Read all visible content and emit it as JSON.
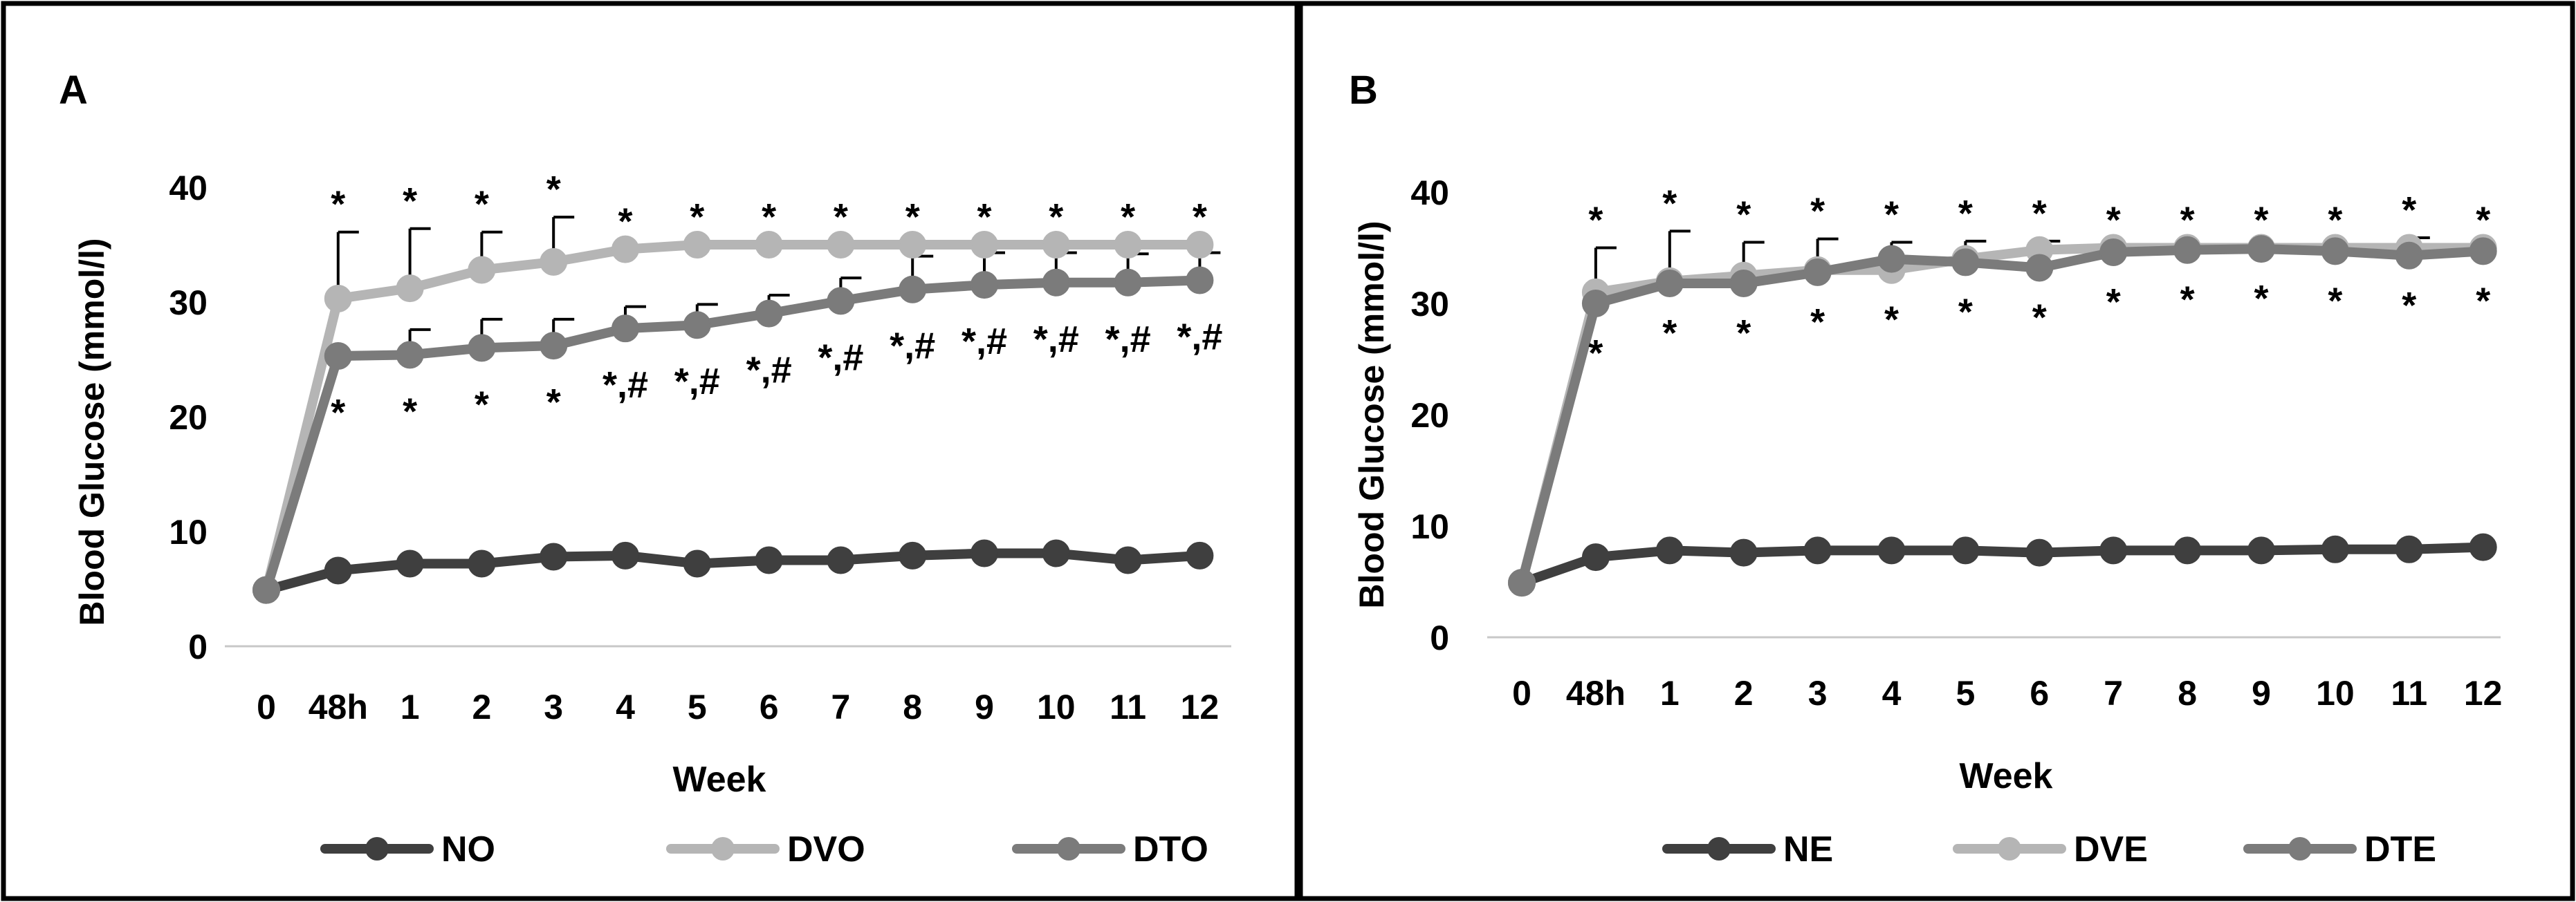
{
  "chart_data": [
    {
      "panel": "A",
      "type": "line",
      "title": "",
      "xlabel": "Week",
      "ylabel": "Blood Glucose (mmol/l)",
      "ylim": [
        0,
        40
      ],
      "yticks": [
        0,
        10,
        20,
        30,
        40
      ],
      "categories": [
        "0",
        "48h",
        "1",
        "2",
        "3",
        "4",
        "5",
        "6",
        "7",
        "8",
        "9",
        "10",
        "11",
        "12"
      ],
      "legend_position": "bottom",
      "grid": false,
      "series": [
        {
          "name": "NO",
          "color": "#3f3f3f",
          "values": [
            4.9,
            6.6,
            7.2,
            7.2,
            7.8,
            7.9,
            7.2,
            7.5,
            7.5,
            7.9,
            8.1,
            8.1,
            7.5,
            7.9
          ],
          "error": [
            0,
            0,
            0,
            0,
            0,
            0,
            0,
            0,
            0,
            0,
            0,
            0,
            0,
            0
          ]
        },
        {
          "name": "DVO",
          "color": "#b5b5b5",
          "values": [
            4.9,
            30.3,
            31.2,
            32.8,
            33.5,
            34.6,
            35.0,
            35.0,
            35.0,
            35.0,
            35.0,
            35.0,
            35.0,
            35.0
          ],
          "error": [
            0,
            5.8,
            5.2,
            3.3,
            3.9,
            0,
            0,
            0,
            0,
            0,
            0,
            0,
            0,
            0
          ]
        },
        {
          "name": "DTO",
          "color": "#7b7b7b",
          "values": [
            4.9,
            25.3,
            25.4,
            26.0,
            26.2,
            27.7,
            28.0,
            29.0,
            30.1,
            31.1,
            31.5,
            31.7,
            31.7,
            31.9
          ],
          "error": [
            0,
            0,
            2.2,
            2.5,
            2.3,
            1.9,
            1.8,
            1.6,
            2.0,
            2.9,
            2.8,
            2.6,
            2.5,
            2.4
          ]
        }
      ],
      "annotations": {
        "above": [
          "",
          "*",
          "*",
          "*",
          "*",
          "*",
          "*",
          "*",
          "*",
          "*",
          "*",
          "*",
          "*",
          "*"
        ],
        "below": [
          "",
          "*",
          "*",
          "*",
          "*",
          "*,#",
          "*,#",
          "*,#",
          "*,#",
          "*,#",
          "*,#",
          "*,#",
          "*,#",
          "*,#"
        ]
      }
    },
    {
      "panel": "B",
      "type": "line",
      "title": "",
      "xlabel": "Week",
      "ylabel": "Blood Glucose (mmol/l)",
      "ylim": [
        0,
        40
      ],
      "yticks": [
        0,
        10,
        20,
        30,
        40
      ],
      "categories": [
        "0",
        "48h",
        "1",
        "2",
        "3",
        "4",
        "5",
        "6",
        "7",
        "8",
        "9",
        "10",
        "11",
        "12"
      ],
      "legend_position": "bottom",
      "grid": false,
      "series": [
        {
          "name": "NE",
          "color": "#3f3f3f",
          "values": [
            4.9,
            7.2,
            7.8,
            7.6,
            7.8,
            7.8,
            7.8,
            7.6,
            7.8,
            7.8,
            7.8,
            7.9,
            7.9,
            8.1
          ],
          "error": [
            0,
            0,
            0,
            0,
            0,
            0,
            0,
            0,
            0,
            0,
            0,
            0,
            0,
            0
          ]
        },
        {
          "name": "DVE",
          "color": "#b5b5b5",
          "values": [
            4.9,
            31.0,
            32.0,
            32.5,
            33.0,
            33.0,
            34.0,
            34.8,
            35.0,
            35.0,
            35.0,
            35.0,
            35.0,
            35.0
          ],
          "error": [
            0,
            4.0,
            4.5,
            3.0,
            2.8,
            2.5,
            1.6,
            0.8,
            0,
            0,
            0,
            0,
            0.9,
            0
          ]
        },
        {
          "name": "DTE",
          "color": "#7b7b7b",
          "values": [
            4.9,
            30.0,
            31.8,
            31.8,
            32.8,
            34.0,
            33.7,
            33.2,
            34.6,
            34.8,
            34.9,
            34.7,
            34.3,
            34.7
          ],
          "error": [
            0,
            0,
            0,
            0,
            0,
            0,
            0,
            0,
            0,
            0,
            0,
            0,
            0,
            0
          ]
        }
      ],
      "annotations": {
        "above": [
          "",
          "*",
          "*",
          "*",
          "*",
          "*",
          "*",
          "*",
          "*",
          "*",
          "*",
          "*",
          "*",
          "*"
        ],
        "below": [
          "",
          "*",
          "*",
          "*",
          "*",
          "*",
          "*",
          "*",
          "*",
          "*",
          "*",
          "*",
          "*",
          "*"
        ]
      }
    }
  ]
}
